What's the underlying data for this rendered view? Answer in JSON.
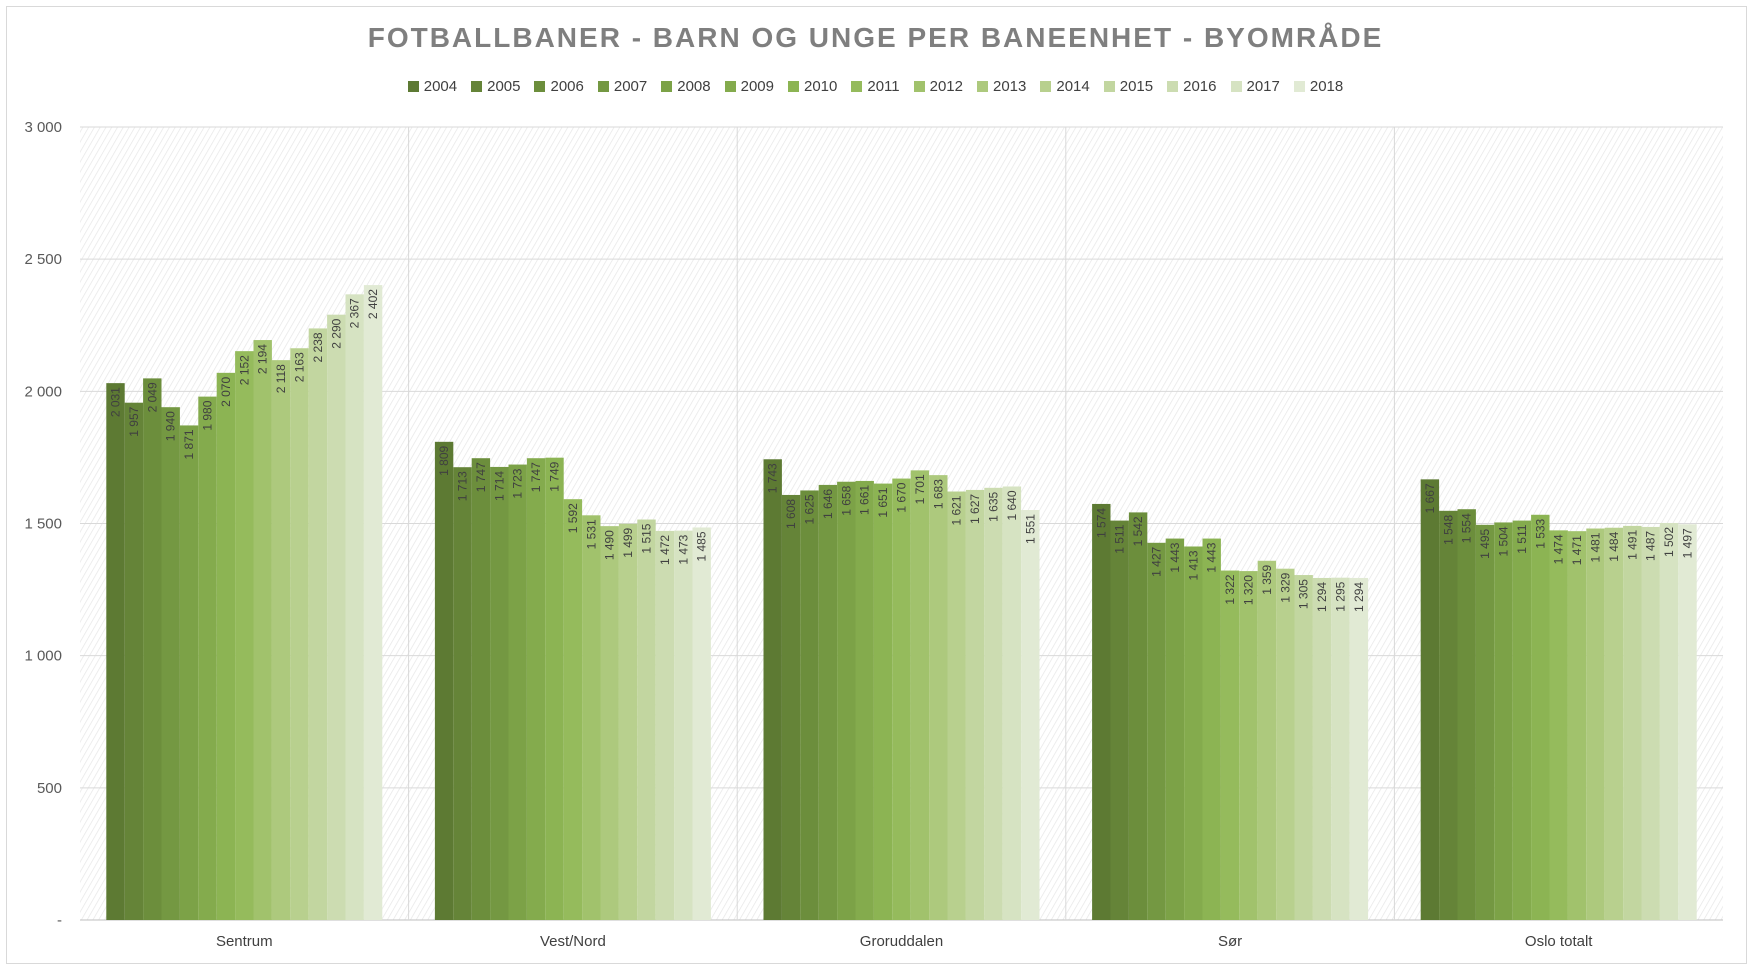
{
  "chart_data": {
    "type": "bar",
    "title": "FOTBALLBANER - BARN OG UNGE PER BANEENHET - BYOMRÅDE",
    "xlabel": "",
    "ylabel": "",
    "ylim": [
      0,
      3000
    ],
    "yticks": [
      0,
      500,
      1000,
      1500,
      2000,
      2500,
      3000
    ],
    "ytick_labels": [
      "-",
      "500",
      "1 000",
      "1 500",
      "2 000",
      "2 500",
      "3 000"
    ],
    "legend_position": "top",
    "grid": true,
    "categories": [
      "Sentrum",
      "Vest/Nord",
      "Groruddalen",
      "Sør",
      "Oslo totalt"
    ],
    "series": [
      {
        "name": "2004",
        "color": "#5d7a33",
        "values": [
          2031,
          1809,
          1743,
          1574,
          1667
        ],
        "labels": [
          "2 031",
          "1 809",
          "1 743",
          "1 574",
          "1 667"
        ]
      },
      {
        "name": "2005",
        "color": "#658438",
        "values": [
          1957,
          1713,
          1608,
          1511,
          1548
        ],
        "labels": [
          "1 957",
          "1 713",
          "1 608",
          "1 511",
          "1 548"
        ]
      },
      {
        "name": "2006",
        "color": "#6c8e3c",
        "values": [
          2049,
          1747,
          1625,
          1542,
          1554
        ],
        "labels": [
          "2 049",
          "1 747",
          "1 625",
          "1 542",
          "1 554"
        ]
      },
      {
        "name": "2007",
        "color": "#749842",
        "values": [
          1940,
          1714,
          1646,
          1427,
          1495
        ],
        "labels": [
          "1 940",
          "1 714",
          "1 646",
          "1 427",
          "1 495"
        ]
      },
      {
        "name": "2008",
        "color": "#7ca247",
        "values": [
          1871,
          1723,
          1658,
          1443,
          1504
        ],
        "labels": [
          "1 871",
          "1 723",
          "1 658",
          "1 443",
          "1 504"
        ]
      },
      {
        "name": "2009",
        "color": "#84ab4d",
        "values": [
          1980,
          1747,
          1661,
          1413,
          1511
        ],
        "labels": [
          "1 980",
          "1 747",
          "1 661",
          "1 413",
          "1 511"
        ]
      },
      {
        "name": "2010",
        "color": "#8cb453",
        "values": [
          2070,
          1749,
          1651,
          1443,
          1533
        ],
        "labels": [
          "2 070",
          "1 749",
          "1 651",
          "1 443",
          "1 533"
        ]
      },
      {
        "name": "2011",
        "color": "#95bb5c",
        "values": [
          2152,
          1592,
          1670,
          1322,
          1474
        ],
        "labels": [
          "2 152",
          "1 592",
          "1 670",
          "1 322",
          "1 474"
        ]
      },
      {
        "name": "2012",
        "color": "#a1c26c",
        "values": [
          2194,
          1531,
          1701,
          1320,
          1471
        ],
        "labels": [
          "2 194",
          "1 531",
          "1 701",
          "1 320",
          "1 471"
        ]
      },
      {
        "name": "2013",
        "color": "#adc97d",
        "values": [
          2118,
          1490,
          1683,
          1359,
          1481
        ],
        "labels": [
          "2 118",
          "1 490",
          "1 683",
          "1 359",
          "1 481"
        ]
      },
      {
        "name": "2014",
        "color": "#b8d08e",
        "values": [
          2163,
          1499,
          1621,
          1329,
          1484
        ],
        "labels": [
          "2 163",
          "1 499",
          "1 621",
          "1 329",
          "1 484"
        ]
      },
      {
        "name": "2015",
        "color": "#c2d6a0",
        "values": [
          2238,
          1515,
          1627,
          1305,
          1491
        ],
        "labels": [
          "2 238",
          "1 515",
          "1 627",
          "1 305",
          "1 491"
        ]
      },
      {
        "name": "2016",
        "color": "#ccdcb1",
        "values": [
          2290,
          1472,
          1635,
          1294,
          1487
        ],
        "labels": [
          "2 290",
          "1 472",
          "1 635",
          "1 294",
          "1 487"
        ]
      },
      {
        "name": "2017",
        "color": "#d6e3c2",
        "values": [
          2367,
          1473,
          1640,
          1295,
          1502
        ],
        "labels": [
          "2 367",
          "1 473",
          "1 640",
          "1 295",
          "1 502"
        ]
      },
      {
        "name": "2018",
        "color": "#e1ead4",
        "values": [
          2402,
          1485,
          1551,
          1294,
          1497
        ],
        "labels": [
          "2 402",
          "1 485",
          "1 551",
          "1 294",
          "1 497"
        ]
      }
    ]
  }
}
